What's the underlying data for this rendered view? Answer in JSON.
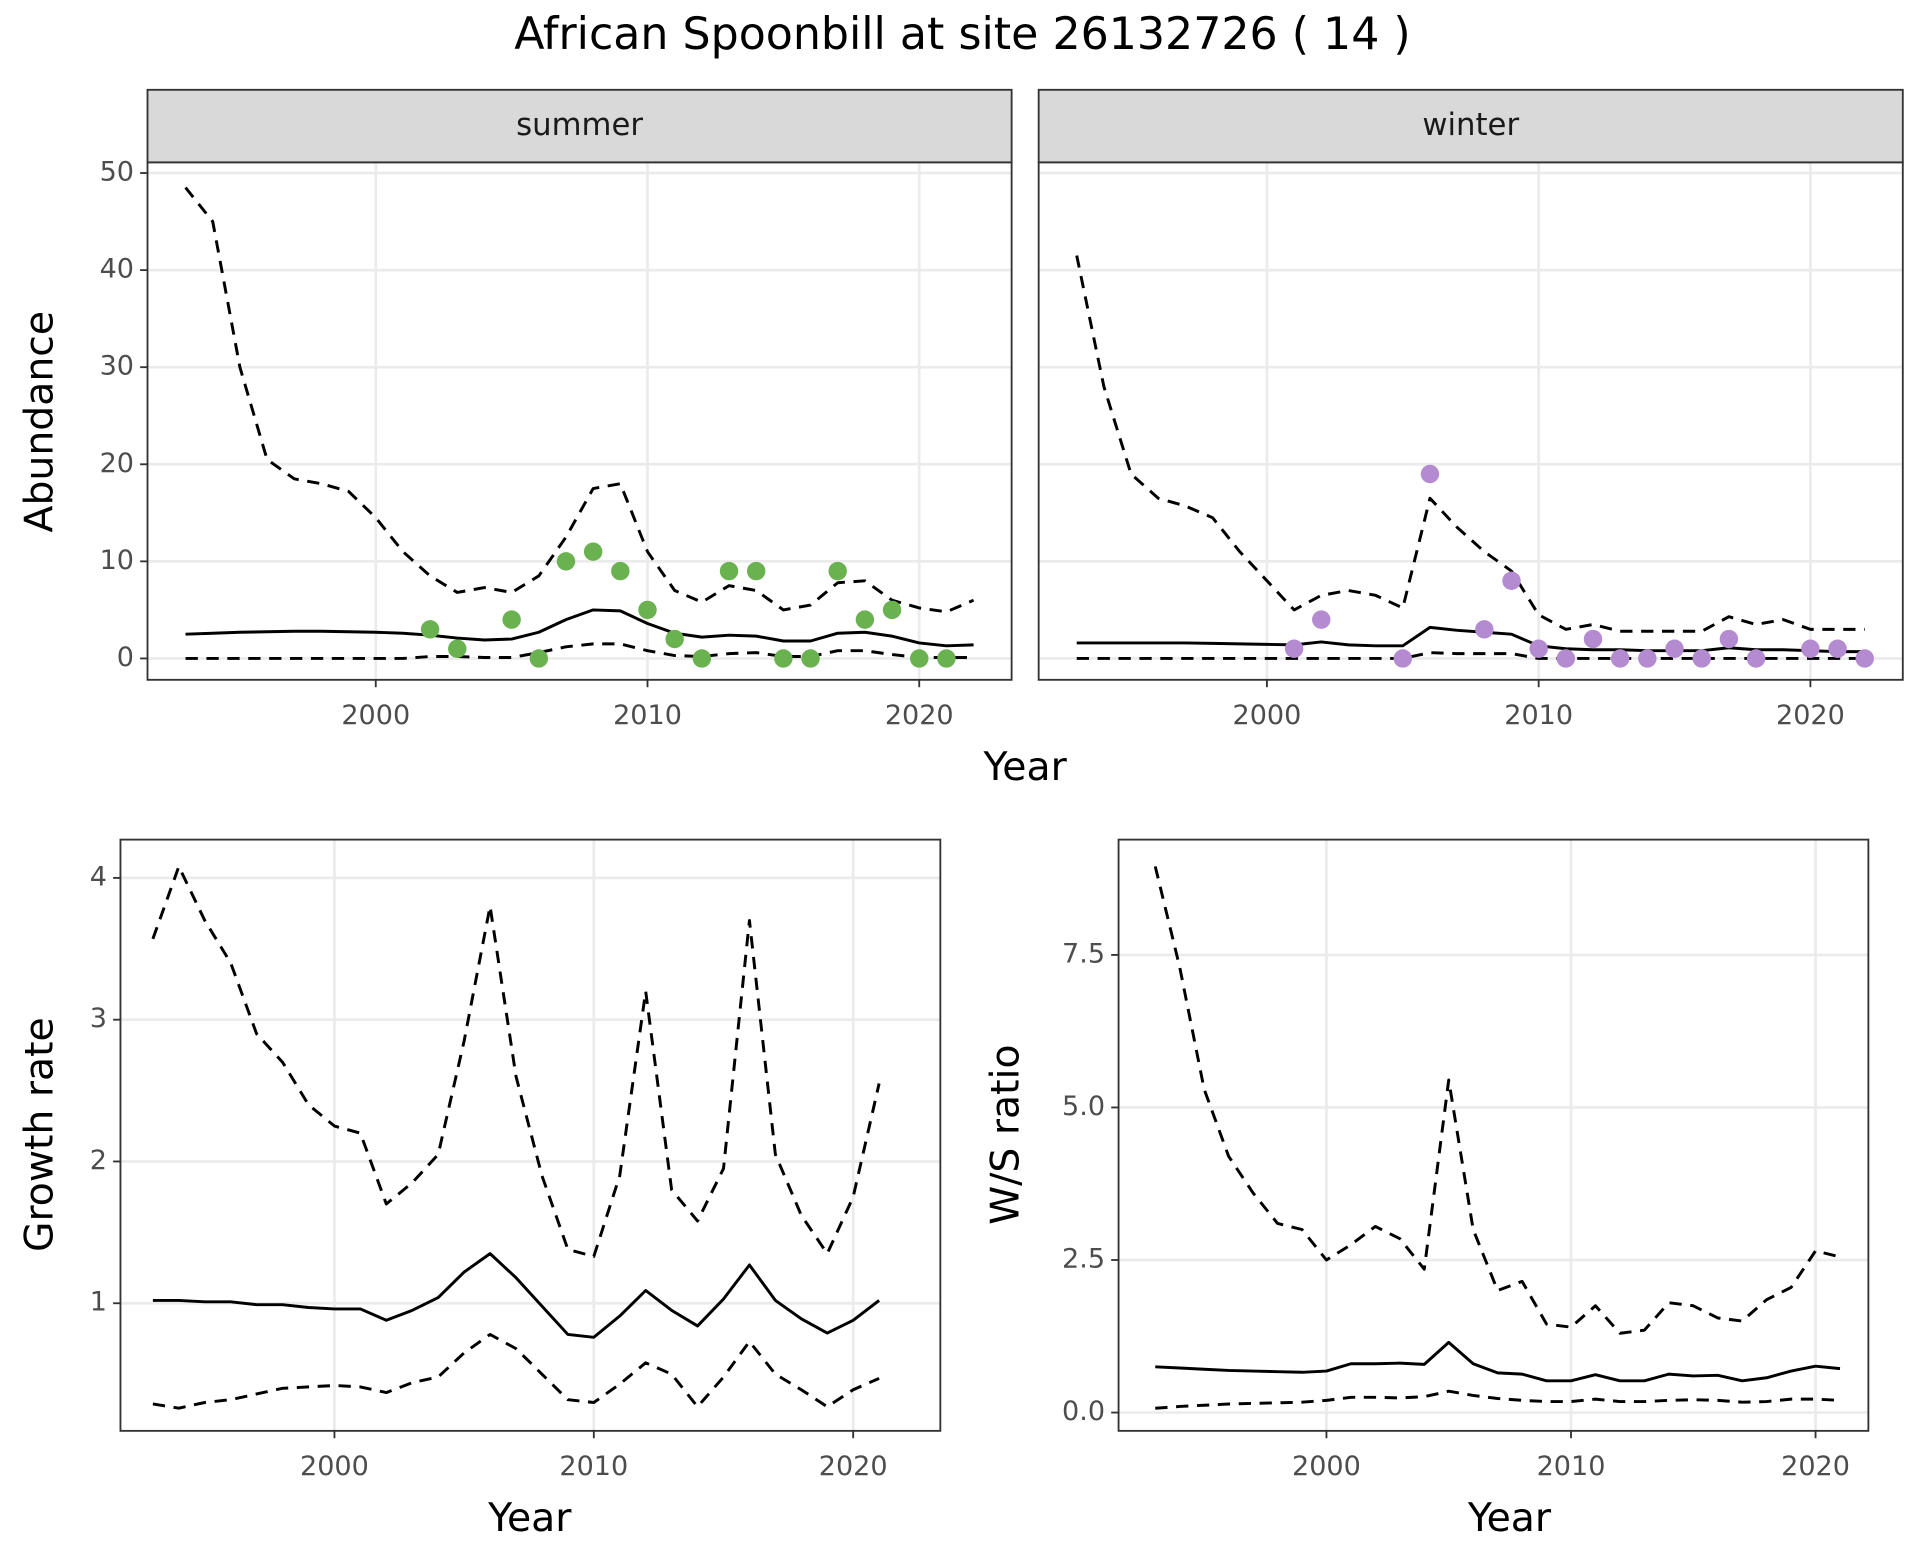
{
  "title": "African Spoonbill at site 26132726 ( 14 )",
  "chart_data": [
    {
      "type": "line",
      "ylabel": "Abundance",
      "xlabel": "Year",
      "xlim": [
        1991.6,
        2023.4
      ],
      "xticks": [
        2000,
        2010,
        2020
      ],
      "ylim": [
        -2.2,
        51.1
      ],
      "yticks": [
        0,
        10,
        20,
        30,
        40,
        50
      ],
      "grid": true,
      "facets": [
        {
          "strip": "summer",
          "x": [
            1993,
            1994,
            1995,
            1996,
            1997,
            1998,
            1999,
            2000,
            2001,
            2002,
            2003,
            2004,
            2005,
            2006,
            2007,
            2008,
            2009,
            2010,
            2011,
            2012,
            2013,
            2014,
            2015,
            2016,
            2017,
            2018,
            2019,
            2020,
            2021,
            2022
          ],
          "series": [
            {
              "color": "#000000",
              "dash": "solid",
              "values": [
                2.5,
                2.6,
                2.7,
                2.75,
                2.8,
                2.8,
                2.75,
                2.7,
                2.6,
                2.4,
                2.1,
                1.9,
                2.0,
                2.7,
                4.0,
                5.0,
                4.9,
                3.6,
                2.6,
                2.2,
                2.4,
                2.3,
                1.8,
                1.8,
                2.6,
                2.7,
                2.3,
                1.6,
                1.3,
                1.4
              ]
            },
            {
              "color": "#000000",
              "dash": "dashed",
              "values": [
                48.5,
                45,
                30,
                20.5,
                18.5,
                18,
                17.2,
                14.5,
                11,
                8.5,
                6.8,
                7.3,
                6.8,
                8.5,
                12.5,
                17.5,
                18,
                11,
                7,
                5.8,
                7.5,
                7,
                5,
                5.5,
                7.8,
                8,
                6,
                5.2,
                4.8,
                6
              ]
            },
            {
              "color": "#000000",
              "dash": "dashed",
              "values": [
                0,
                0,
                0,
                0,
                0,
                0,
                0,
                0,
                0,
                0.2,
                0.2,
                0.1,
                0.1,
                0.6,
                1.2,
                1.5,
                1.5,
                0.8,
                0.3,
                0.2,
                0.5,
                0.6,
                0.2,
                0.2,
                0.8,
                0.8,
                0.4,
                0.1,
                0.1,
                0.1
              ]
            }
          ],
          "points": {
            "color": "#6ab150",
            "x": [
              2002,
              2003,
              2005,
              2006,
              2007,
              2008,
              2009,
              2010,
              2011,
              2012,
              2013,
              2014,
              2015,
              2016,
              2017,
              2018,
              2019,
              2020,
              2021
            ],
            "values": [
              3,
              1,
              4,
              0,
              10,
              11,
              9,
              5,
              2,
              0,
              9,
              9,
              0,
              0,
              9,
              4,
              5,
              0,
              0
            ]
          }
        },
        {
          "strip": "winter",
          "x": [
            1993,
            1994,
            1995,
            1996,
            1997,
            1998,
            1999,
            2000,
            2001,
            2002,
            2003,
            2004,
            2005,
            2006,
            2007,
            2008,
            2009,
            2010,
            2011,
            2012,
            2013,
            2014,
            2015,
            2016,
            2017,
            2018,
            2019,
            2020,
            2021,
            2022
          ],
          "series": [
            {
              "color": "#000000",
              "dash": "solid",
              "values": [
                1.6,
                1.6,
                1.6,
                1.6,
                1.6,
                1.55,
                1.5,
                1.45,
                1.4,
                1.7,
                1.4,
                1.3,
                1.3,
                3.2,
                2.9,
                2.7,
                2.5,
                1.3,
                1.0,
                0.9,
                0.9,
                0.8,
                0.8,
                0.8,
                1.1,
                0.9,
                0.9,
                0.8,
                0.7,
                0.7
              ]
            },
            {
              "color": "#000000",
              "dash": "dashed",
              "values": [
                41.5,
                28,
                19,
                16.5,
                15.7,
                14.5,
                11,
                8,
                5,
                6.5,
                7,
                6.5,
                5.2,
                16.5,
                13.5,
                11,
                9,
                4.5,
                3,
                3.5,
                2.8,
                2.8,
                2.8,
                2.8,
                4.3,
                3.5,
                4,
                3,
                3,
                3
              ]
            },
            {
              "color": "#000000",
              "dash": "dashed",
              "values": [
                0,
                0,
                0,
                0,
                0,
                0,
                0,
                0,
                0,
                0,
                0,
                0,
                0,
                0.6,
                0.5,
                0.5,
                0.5,
                0,
                0,
                0,
                0,
                0,
                0,
                0,
                0,
                0,
                0,
                0,
                0,
                0
              ]
            }
          ],
          "points": {
            "color": "#b48ad0",
            "x": [
              2001,
              2002,
              2005,
              2006,
              2008,
              2009,
              2010,
              2011,
              2012,
              2013,
              2014,
              2015,
              2016,
              2017,
              2018,
              2020,
              2021,
              2022
            ],
            "values": [
              1,
              4,
              0,
              19,
              3,
              8,
              1,
              0,
              2,
              0,
              0,
              1,
              0,
              2,
              0,
              1,
              1,
              0
            ]
          }
        }
      ]
    },
    {
      "type": "line",
      "ylabel": "Growth rate",
      "xlabel": "Year",
      "xlim": [
        1991.75,
        2023.36
      ],
      "xticks": [
        2000,
        2010,
        2020
      ],
      "ylim": [
        0.1,
        4.27
      ],
      "yticks": [
        1,
        2,
        3,
        4
      ],
      "grid": true,
      "x": [
        1993,
        1994,
        1995,
        1996,
        1997,
        1998,
        1999,
        2000,
        2001,
        2002,
        2003,
        2004,
        2005,
        2006,
        2007,
        2008,
        2009,
        2010,
        2011,
        2012,
        2013,
        2014,
        2015,
        2016,
        2017,
        2018,
        2019,
        2020,
        2021
      ],
      "series": [
        {
          "color": "#000000",
          "dash": "solid",
          "values": [
            1.02,
            1.02,
            1.01,
            1.01,
            0.99,
            0.99,
            0.97,
            0.96,
            0.96,
            0.88,
            0.95,
            1.04,
            1.22,
            1.35,
            1.18,
            0.98,
            0.78,
            0.76,
            0.91,
            1.09,
            0.95,
            0.84,
            1.03,
            1.27,
            1.02,
            0.89,
            0.79,
            0.88,
            1.02
          ]
        },
        {
          "color": "#000000",
          "dash": "dashed",
          "values": [
            3.57,
            4.08,
            3.7,
            3.4,
            2.9,
            2.7,
            2.4,
            2.25,
            2.2,
            1.7,
            1.85,
            2.05,
            2.85,
            3.8,
            2.6,
            1.9,
            1.38,
            1.33,
            1.9,
            3.2,
            1.8,
            1.58,
            1.95,
            3.7,
            2.05,
            1.62,
            1.35,
            1.75,
            2.55
          ]
        },
        {
          "color": "#000000",
          "dash": "dashed",
          "values": [
            0.29,
            0.26,
            0.3,
            0.32,
            0.36,
            0.4,
            0.41,
            0.42,
            0.41,
            0.37,
            0.44,
            0.48,
            0.65,
            0.78,
            0.68,
            0.5,
            0.32,
            0.3,
            0.43,
            0.58,
            0.5,
            0.27,
            0.48,
            0.73,
            0.5,
            0.39,
            0.27,
            0.39,
            0.47
          ]
        }
      ]
    },
    {
      "type": "line",
      "ylabel": "W/S ratio",
      "xlabel": "Year",
      "xlim": [
        1991.5,
        2022.16
      ],
      "xticks": [
        2000,
        2010,
        2020
      ],
      "ylim": [
        -0.3,
        9.39
      ],
      "yticks": [
        {
          "value": 0,
          "label": "0.0"
        },
        2.5,
        {
          "value": 5,
          "label": "5.0"
        },
        7.5
      ],
      "grid": true,
      "x": [
        1993,
        1994,
        1995,
        1996,
        1997,
        1998,
        1999,
        2000,
        2001,
        2002,
        2003,
        2004,
        2005,
        2006,
        2007,
        2008,
        2009,
        2010,
        2011,
        2012,
        2013,
        2014,
        2015,
        2016,
        2017,
        2018,
        2019,
        2020,
        2021
      ],
      "series": [
        {
          "color": "#000000",
          "dash": "solid",
          "values": [
            0.75,
            0.73,
            0.71,
            0.69,
            0.68,
            0.67,
            0.66,
            0.68,
            0.8,
            0.8,
            0.81,
            0.79,
            1.15,
            0.8,
            0.65,
            0.63,
            0.52,
            0.52,
            0.62,
            0.52,
            0.52,
            0.63,
            0.6,
            0.61,
            0.52,
            0.57,
            0.68,
            0.76,
            0.72
          ]
        },
        {
          "color": "#000000",
          "dash": "dashed",
          "values": [
            8.95,
            7.3,
            5.3,
            4.2,
            3.6,
            3.1,
            3.0,
            2.5,
            2.75,
            3.05,
            2.85,
            2.35,
            5.45,
            3.0,
            2.0,
            2.15,
            1.45,
            1.4,
            1.75,
            1.3,
            1.35,
            1.8,
            1.75,
            1.55,
            1.5,
            1.85,
            2.05,
            2.65,
            2.55
          ]
        },
        {
          "color": "#000000",
          "dash": "dashed",
          "values": [
            0.07,
            0.1,
            0.12,
            0.14,
            0.15,
            0.16,
            0.17,
            0.2,
            0.25,
            0.25,
            0.24,
            0.26,
            0.35,
            0.28,
            0.23,
            0.2,
            0.18,
            0.18,
            0.22,
            0.18,
            0.18,
            0.2,
            0.21,
            0.2,
            0.17,
            0.18,
            0.22,
            0.22,
            0.2
          ]
        }
      ]
    }
  ]
}
